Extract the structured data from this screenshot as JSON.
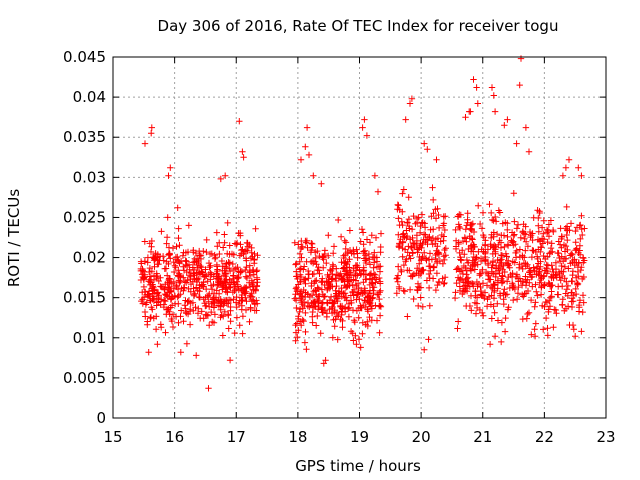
{
  "chart_data": {
    "type": "scatter",
    "title": "Day 306 of 2016, Rate Of TEC Index for receiver togu",
    "xlabel": "GPS time / hours",
    "ylabel": "ROTI / TECUs",
    "xlim": [
      15,
      23
    ],
    "ylim": [
      0,
      0.045
    ],
    "x_ticks": [
      15,
      16,
      17,
      18,
      19,
      20,
      21,
      22,
      23
    ],
    "y_ticks": [
      0,
      0.005,
      0.01,
      0.015,
      0.02,
      0.025,
      0.03,
      0.035,
      0.04,
      0.045
    ],
    "x_tick_labels": [
      "15",
      "16",
      "17",
      "18",
      "19",
      "20",
      "21",
      "22",
      "23"
    ],
    "y_tick_labels": [
      "0",
      "0.005",
      "0.01",
      "0.015",
      "0.02",
      "0.025",
      "0.03",
      "0.035",
      "0.04",
      "0.045"
    ],
    "grid": true,
    "marker": "+",
    "color": "#ff0000",
    "series": [
      {
        "name": "ROTI",
        "clusters": [
          {
            "x_start": 15.45,
            "x_end": 17.35,
            "y_center": 0.017,
            "y_spread": 0.005,
            "count": 620
          },
          {
            "x_start": 17.95,
            "x_end": 19.35,
            "y_center": 0.0165,
            "y_spread": 0.0055,
            "count": 480
          },
          {
            "x_start": 19.6,
            "x_end": 20.4,
            "y_center": 0.021,
            "y_spread": 0.006,
            "count": 200
          },
          {
            "x_start": 20.55,
            "x_end": 22.65,
            "y_center": 0.019,
            "y_spread": 0.006,
            "count": 620
          }
        ],
        "points": [
          [
            15.52,
            0.0342
          ],
          [
            15.63,
            0.0362
          ],
          [
            15.62,
            0.0355
          ],
          [
            15.9,
            0.0302
          ],
          [
            15.93,
            0.0312
          ],
          [
            16.05,
            0.0262
          ],
          [
            16.55,
            0.0037
          ],
          [
            16.75,
            0.0298
          ],
          [
            16.82,
            0.0302
          ],
          [
            17.05,
            0.037
          ],
          [
            17.1,
            0.0332
          ],
          [
            17.12,
            0.0325
          ],
          [
            15.58,
            0.0082
          ],
          [
            15.72,
            0.0092
          ],
          [
            16.1,
            0.0082
          ],
          [
            16.35,
            0.0078
          ],
          [
            16.9,
            0.0072
          ],
          [
            18.05,
            0.0322
          ],
          [
            18.12,
            0.0338
          ],
          [
            18.18,
            0.0328
          ],
          [
            18.15,
            0.0362
          ],
          [
            18.25,
            0.0302
          ],
          [
            18.38,
            0.0292
          ],
          [
            18.45,
            0.0072
          ],
          [
            18.42,
            0.0068
          ],
          [
            18.95,
            0.0092
          ],
          [
            19.02,
            0.0088
          ],
          [
            19.05,
            0.0362
          ],
          [
            19.08,
            0.0372
          ],
          [
            19.12,
            0.0352
          ],
          [
            19.25,
            0.0302
          ],
          [
            19.3,
            0.0282
          ],
          [
            19.75,
            0.0372
          ],
          [
            19.82,
            0.0392
          ],
          [
            19.85,
            0.0398
          ],
          [
            20.05,
            0.0342
          ],
          [
            20.1,
            0.0335
          ],
          [
            20.05,
            0.0085
          ],
          [
            20.12,
            0.0098
          ],
          [
            20.25,
            0.0322
          ],
          [
            20.72,
            0.0375
          ],
          [
            20.78,
            0.0382
          ],
          [
            20.8,
            0.0382
          ],
          [
            20.85,
            0.0422
          ],
          [
            20.9,
            0.0412
          ],
          [
            20.92,
            0.0392
          ],
          [
            21.15,
            0.0412
          ],
          [
            21.18,
            0.0402
          ],
          [
            21.2,
            0.0382
          ],
          [
            21.35,
            0.0365
          ],
          [
            21.4,
            0.0372
          ],
          [
            21.55,
            0.0342
          ],
          [
            21.6,
            0.0415
          ],
          [
            21.62,
            0.0448
          ],
          [
            21.7,
            0.0362
          ],
          [
            21.75,
            0.0332
          ],
          [
            21.12,
            0.0092
          ],
          [
            21.2,
            0.0102
          ],
          [
            21.85,
            0.0102
          ],
          [
            22.05,
            0.0112
          ],
          [
            22.3,
            0.0302
          ],
          [
            22.35,
            0.0312
          ],
          [
            22.4,
            0.0322
          ],
          [
            22.55,
            0.0312
          ],
          [
            22.6,
            0.0302
          ],
          [
            22.5,
            0.0102
          ],
          [
            22.6,
            0.0108
          ],
          [
            22.6,
            0.0252
          ]
        ]
      }
    ]
  }
}
